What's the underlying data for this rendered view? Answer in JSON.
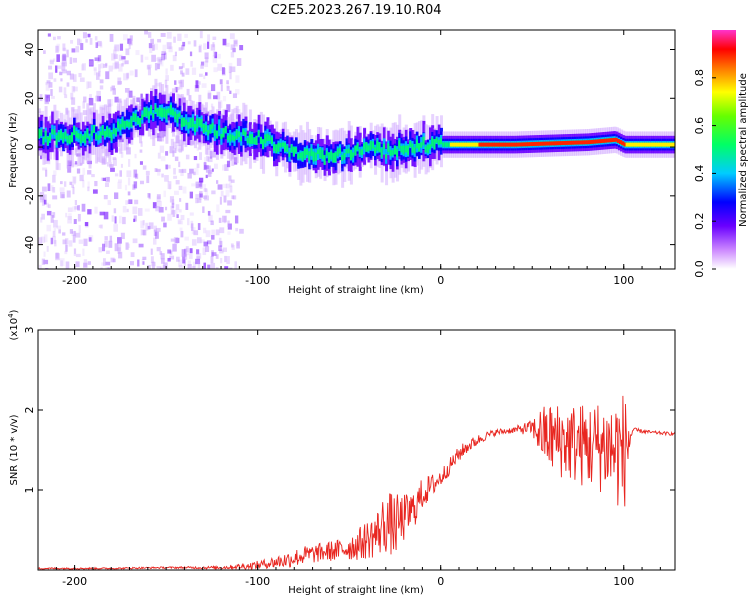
{
  "title": "C2E5.2023.267.19.10.R04",
  "colors": {
    "line": "#e8251f",
    "axis": "#000000"
  },
  "chart_data": [
    {
      "type": "heatmap",
      "name": "spectrogram",
      "xlabel": "Height of straight line (km)",
      "ylabel": "Frequency (Hz)",
      "xlim": [
        -220,
        128
      ],
      "ylim": [
        -50,
        48
      ],
      "xticks": [
        -200,
        -100,
        0,
        100
      ],
      "yticks": [
        -40,
        -20,
        0,
        20,
        40
      ],
      "colorbar": {
        "label": "Normalized spectral amplitude",
        "range": [
          0.0,
          1.0
        ],
        "ticks": [
          "0.0",
          "0.2",
          "0.4",
          "0.6",
          "0.8"
        ]
      },
      "ridge": {
        "x": [
          -220,
          -200,
          -180,
          -160,
          -150,
          -140,
          -120,
          -100,
          -80,
          -60,
          -50,
          -40,
          -30,
          -20,
          0,
          40,
          80,
          95,
          100,
          128
        ],
        "freq": [
          4,
          5,
          6,
          14,
          15,
          10,
          6,
          4,
          -3,
          -4,
          -2,
          0,
          -2,
          0,
          1,
          1,
          2,
          3,
          1,
          1
        ]
      }
    },
    {
      "type": "line",
      "name": "snr",
      "xlabel": "Height of straight line (km)",
      "ylabel": "SNR (10 * v/v)",
      "y_scale_label": "(x10",
      "y_scale_exp": "4",
      "y_scale_close": ")",
      "xlim": [
        -220,
        128
      ],
      "ylim": [
        0,
        3
      ],
      "xticks": [
        -200,
        -100,
        0,
        100
      ],
      "yticks": [
        1,
        2,
        3
      ],
      "series": [
        {
          "name": "SNR",
          "x": [
            -220,
            -180,
            -150,
            -120,
            -105,
            -95,
            -85,
            -75,
            -65,
            -55,
            -45,
            -35,
            -30,
            -25,
            -20,
            -15,
            -10,
            -5,
            0,
            5,
            10,
            15,
            20,
            25,
            30,
            40,
            50,
            55,
            60,
            70,
            80,
            90,
            95,
            100,
            105,
            115,
            128
          ],
          "y": [
            0.02,
            0.02,
            0.03,
            0.03,
            0.05,
            0.08,
            0.12,
            0.18,
            0.22,
            0.25,
            0.32,
            0.45,
            0.6,
            0.55,
            0.65,
            0.75,
            0.95,
            1.05,
            1.15,
            1.3,
            1.45,
            1.55,
            1.62,
            1.68,
            1.72,
            1.75,
            1.78,
            1.7,
            1.65,
            1.6,
            1.55,
            1.55,
            1.5,
            1.45,
            1.75,
            1.72,
            1.7
          ],
          "noise": [
            0.01,
            0.01,
            0.01,
            0.02,
            0.04,
            0.06,
            0.1,
            0.12,
            0.12,
            0.14,
            0.2,
            0.3,
            0.4,
            0.4,
            0.3,
            0.25,
            0.2,
            0.15,
            0.12,
            0.1,
            0.1,
            0.08,
            0.07,
            0.05,
            0.04,
            0.04,
            0.1,
            0.35,
            0.45,
            0.5,
            0.55,
            0.6,
            0.7,
            0.8,
            0.03,
            0.02,
            0.02
          ]
        }
      ]
    }
  ]
}
